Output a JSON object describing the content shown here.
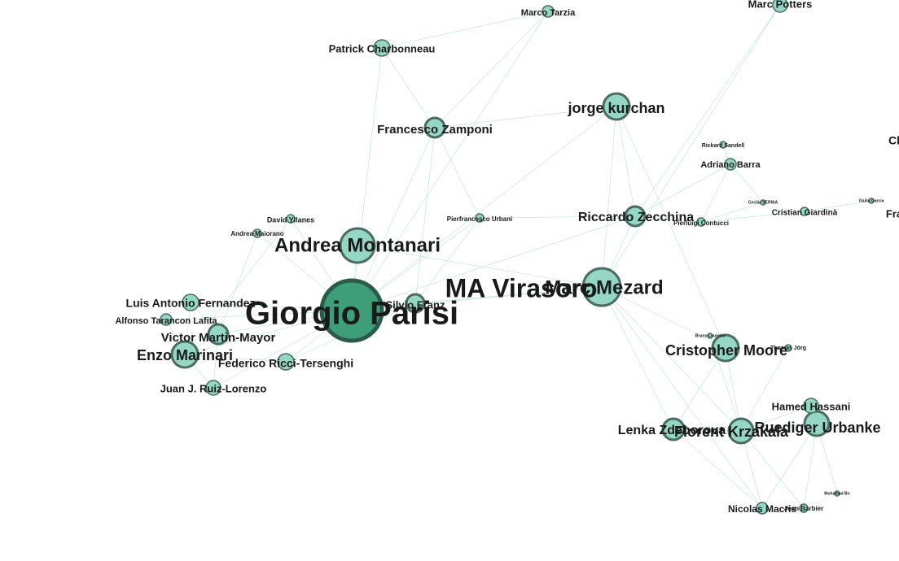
{
  "colors": {
    "edge": "#8fd3c1",
    "node_fill": "#93d7c4",
    "node_stroke": "#4c6b62",
    "hub_fill": "#3f9e7a",
    "hub_stroke": "#2a5a48",
    "label": "#1a1a1a"
  },
  "nodes": [
    {
      "id": "giorgio-parisi",
      "label": "Giorgio Parisi",
      "weight": 10,
      "hub": true
    },
    {
      "id": "marc-mezard",
      "label": "Marc Mezard",
      "weight": 5.4
    },
    {
      "id": "ma-virasoro",
      "label": "MA Virasoro",
      "weight": 0
    },
    {
      "id": "andrea-montanari",
      "label": "Andrea Montanari",
      "weight": 4.9
    },
    {
      "id": "jorge-kurchan",
      "label": "jorge kurchan",
      "weight": 3.9
    },
    {
      "id": "cristopher-moore",
      "label": "Cristopher Moore",
      "weight": 3.9
    },
    {
      "id": "ruediger-urbanke",
      "label": "Ruediger Urbanke",
      "weight": 3.7
    },
    {
      "id": "florent-krzakala",
      "label": "Florent Krzakala",
      "weight": 3.6
    },
    {
      "id": "enzo-marinari",
      "label": "Enzo Marinari",
      "weight": 3.6
    },
    {
      "id": "lenka-zdeborova",
      "label": "Lenka Zdeborova",
      "weight": 3.1
    },
    {
      "id": "riccardo-zecchina",
      "label": "Riccardo Zecchina",
      "weight": 3.0
    },
    {
      "id": "francesco-zamponi",
      "label": "Francesco Zamponi",
      "weight": 3.0
    },
    {
      "id": "victor-martin-mayor",
      "label": "Victor Martin-Mayor",
      "weight": 2.9
    },
    {
      "id": "silvio-franz",
      "label": "Silvio Franz",
      "weight": 2.8
    },
    {
      "id": "federico-ricci-tersenghi",
      "label": "Federico Ricci-Tersenghi",
      "weight": 2.6
    },
    {
      "id": "luis-antonio-fernandez",
      "label": "Luis Antonio Fernandez",
      "weight": 2.6
    },
    {
      "id": "patrick-charbonneau",
      "label": "Patrick Charbonneau",
      "weight": 2.6
    },
    {
      "id": "hamed-hassani",
      "label": "Hamed Hassani",
      "weight": 2.4
    },
    {
      "id": "juan-ruiz-lorenzo",
      "label": "Juan J. Ruiz-Lorenzo",
      "weight": 2.4
    },
    {
      "id": "marc-potters",
      "label": "Marc Potters",
      "weight": 2.3
    },
    {
      "id": "alfonso-tarancon-lafita",
      "label": "Alfonso Tarancon Lafita",
      "weight": 1.8
    },
    {
      "id": "nicolas-macris",
      "label": "Nicolas Macris",
      "weight": 1.8
    },
    {
      "id": "marco-tarzia",
      "label": "Marco Tarzia",
      "weight": 1.8
    },
    {
      "id": "adriano-barra",
      "label": "Adriano Barra",
      "weight": 1.8
    },
    {
      "id": "cristian-giardina",
      "label": "Cristian Giardinà",
      "weight": 1.5
    },
    {
      "id": "david-yllanes",
      "label": "David Yllanes",
      "weight": 1.4
    },
    {
      "id": "andrea-maiorano",
      "label": "Andrea Maiorano",
      "weight": 1.3
    },
    {
      "id": "pierfrancesco-urbani",
      "label": "Pierfrancesco Urbani",
      "weight": 1.3
    },
    {
      "id": "pierluigi-contucci",
      "label": "Pierluigi Contucci",
      "weight": 1.3
    },
    {
      "id": "jean-barbier",
      "label": "Jean Barbier",
      "weight": 1.2
    },
    {
      "id": "thomas-jorg",
      "label": "Thomas Jörg",
      "weight": 1.0
    },
    {
      "id": "rickard-sandell",
      "label": "Rickard Sandell",
      "weight": 0.9
    },
    {
      "id": "bruno-loureiro",
      "label": "Bruno Loureiro",
      "weight": 0.8
    },
    {
      "id": "cecilia-vernia",
      "label": "Cecilia VERNIA",
      "weight": 0.8
    },
    {
      "id": "giulia-garcia",
      "label": "Giulia Garcia",
      "weight": 0.7
    },
    {
      "id": "nabil-bo",
      "label": "Mohamad Bo",
      "weight": 0.7
    },
    {
      "id": "frame-right-1",
      "label": "Cl",
      "weight": 0
    },
    {
      "id": "frame-right-2",
      "label": "Fra",
      "weight": 0
    }
  ],
  "edges": [
    [
      "giorgio-parisi",
      "andrea-montanari"
    ],
    [
      "giorgio-parisi",
      "marc-mezard"
    ],
    [
      "giorgio-parisi",
      "enzo-marinari"
    ],
    [
      "giorgio-parisi",
      "silvio-franz"
    ],
    [
      "giorgio-parisi",
      "federico-ricci-tersenghi"
    ],
    [
      "giorgio-parisi",
      "victor-martin-mayor"
    ],
    [
      "giorgio-parisi",
      "luis-antonio-fernandez"
    ],
    [
      "giorgio-parisi",
      "juan-ruiz-lorenzo"
    ],
    [
      "giorgio-parisi",
      "francesco-zamponi"
    ],
    [
      "giorgio-parisi",
      "jorge-kurchan"
    ],
    [
      "giorgio-parisi",
      "pierfrancesco-urbani"
    ],
    [
      "giorgio-parisi",
      "riccardo-zecchina"
    ],
    [
      "giorgio-parisi",
      "alfonso-tarancon-lafita"
    ],
    [
      "giorgio-parisi",
      "david-yllanes"
    ],
    [
      "giorgio-parisi",
      "andrea-maiorano"
    ],
    [
      "giorgio-parisi",
      "patrick-charbonneau"
    ],
    [
      "giorgio-parisi",
      "marco-tarzia"
    ],
    [
      "marc-mezard",
      "andrea-montanari"
    ],
    [
      "marc-mezard",
      "riccardo-zecchina"
    ],
    [
      "marc-mezard",
      "florent-krzakala"
    ],
    [
      "marc-mezard",
      "lenka-zdeborova"
    ],
    [
      "marc-mezard",
      "jorge-kurchan"
    ],
    [
      "marc-mezard",
      "silvio-franz"
    ],
    [
      "marc-mezard",
      "marc-potters"
    ],
    [
      "marc-mezard",
      "cristopher-moore"
    ],
    [
      "marc-mezard",
      "nicolas-macris"
    ],
    [
      "enzo-marinari",
      "victor-martin-mayor"
    ],
    [
      "enzo-marinari",
      "luis-antonio-fernandez"
    ],
    [
      "enzo-marinari",
      "juan-ruiz-lorenzo"
    ],
    [
      "enzo-marinari",
      "federico-ricci-tersenghi"
    ],
    [
      "enzo-marinari",
      "alfonso-tarancon-lafita"
    ],
    [
      "enzo-marinari",
      "david-yllanes"
    ],
    [
      "victor-martin-mayor",
      "luis-antonio-fernandez"
    ],
    [
      "victor-martin-mayor",
      "juan-ruiz-lorenzo"
    ],
    [
      "victor-martin-mayor",
      "andrea-maiorano"
    ],
    [
      "francesco-zamponi",
      "patrick-charbonneau"
    ],
    [
      "francesco-zamponi",
      "pierfrancesco-urbani"
    ],
    [
      "francesco-zamponi",
      "jorge-kurchan"
    ],
    [
      "francesco-zamponi",
      "silvio-franz"
    ],
    [
      "francesco-zamponi",
      "marco-tarzia"
    ],
    [
      "patrick-charbonneau",
      "marco-tarzia"
    ],
    [
      "riccardo-zecchina",
      "jorge-kurchan"
    ],
    [
      "riccardo-zecchina",
      "marc-potters"
    ],
    [
      "riccardo-zecchina",
      "adriano-barra"
    ],
    [
      "riccardo-zecchina",
      "pierluigi-contucci"
    ],
    [
      "riccardo-zecchina",
      "pierfrancesco-urbani"
    ],
    [
      "adriano-barra",
      "pierluigi-contucci"
    ],
    [
      "adriano-barra",
      "rickard-sandell"
    ],
    [
      "adriano-barra",
      "cecilia-vernia"
    ],
    [
      "pierluigi-contucci",
      "cristian-giardina"
    ],
    [
      "pierluigi-contucci",
      "cecilia-vernia"
    ],
    [
      "cristian-giardina",
      "giulia-garcia"
    ],
    [
      "florent-krzakala",
      "lenka-zdeborova"
    ],
    [
      "florent-krzakala",
      "ruediger-urbanke"
    ],
    [
      "florent-krzakala",
      "cristopher-moore"
    ],
    [
      "florent-krzakala",
      "nicolas-macris"
    ],
    [
      "florent-krzakala",
      "jean-barbier"
    ],
    [
      "florent-krzakala",
      "bruno-loureiro"
    ],
    [
      "florent-krzakala",
      "hamed-hassani"
    ],
    [
      "florent-krzakala",
      "thomas-jorg"
    ],
    [
      "lenka-zdeborova",
      "cristopher-moore"
    ],
    [
      "lenka-zdeborova",
      "ruediger-urbanke"
    ],
    [
      "lenka-zdeborova",
      "nicolas-macris"
    ],
    [
      "ruediger-urbanke",
      "hamed-hassani"
    ],
    [
      "ruediger-urbanke",
      "nicolas-macris"
    ],
    [
      "ruediger-urbanke",
      "jean-barbier"
    ],
    [
      "ruediger-urbanke",
      "nabil-bo"
    ],
    [
      "nicolas-macris",
      "jean-barbier"
    ],
    [
      "cristopher-moore",
      "thomas-jorg"
    ],
    [
      "cristopher-moore",
      "jorge-kurchan"
    ],
    [
      "silvio-franz",
      "pierfrancesco-urbani"
    ],
    [
      "silvio-franz",
      "federico-ricci-tersenghi"
    ]
  ]
}
